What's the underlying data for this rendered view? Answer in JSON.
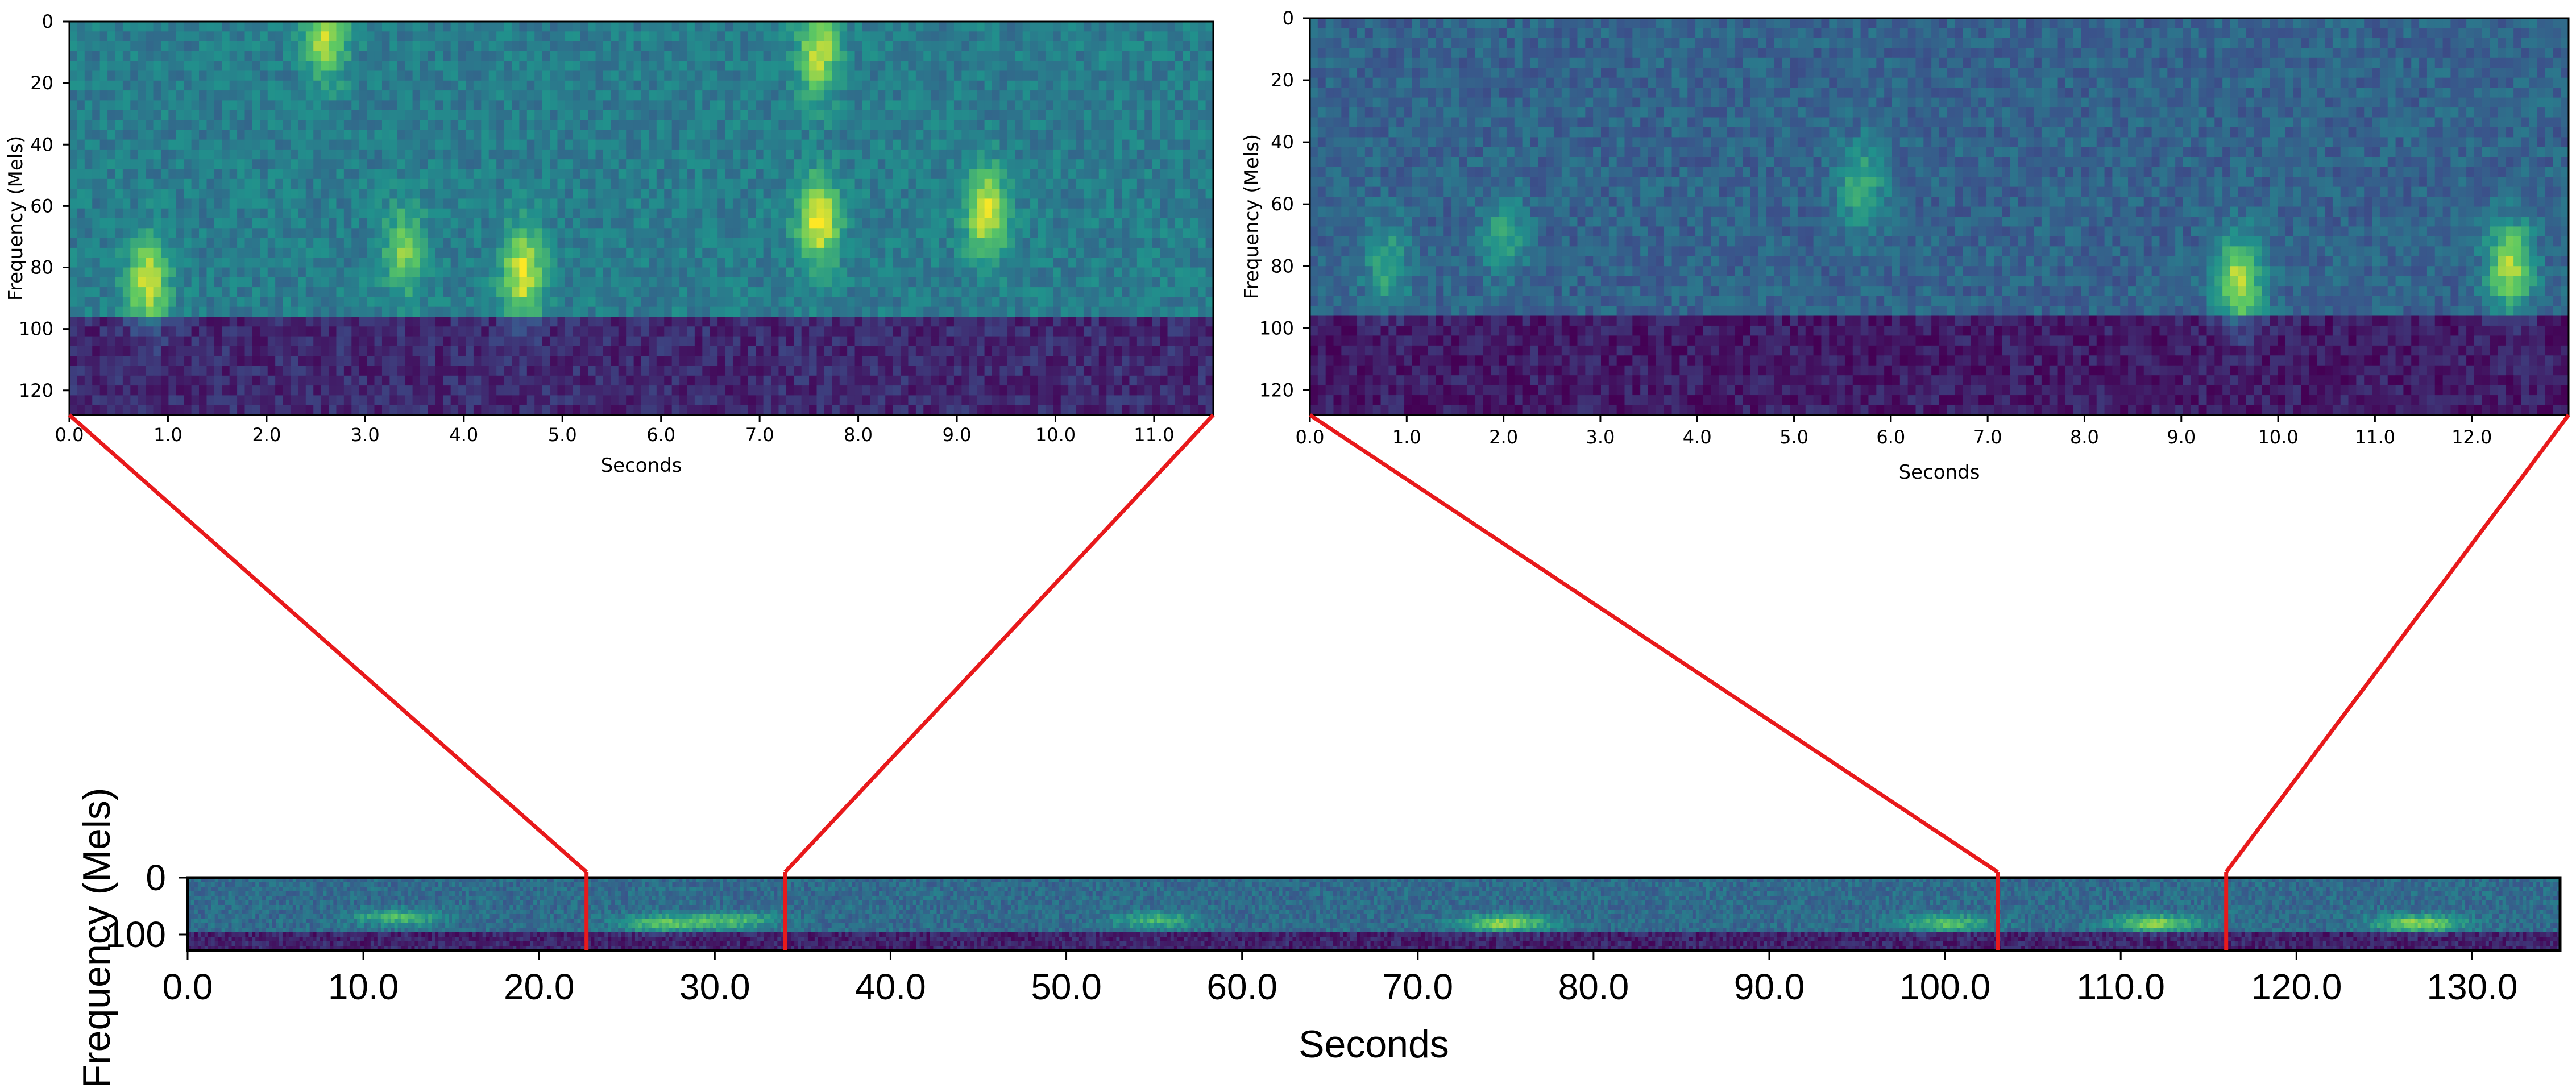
{
  "chart_data": [
    {
      "type": "heatmap",
      "name": "zoom-left",
      "colormap": [
        "#440154",
        "#3b528b",
        "#21918c",
        "#5ec962",
        "#fde725"
      ],
      "xlabel": "Seconds",
      "ylabel": "Frequency (Mels)",
      "xlim": [
        0.0,
        11.6
      ],
      "ylim": [
        128,
        0
      ],
      "x_ticks": [
        "0.0",
        "1.0",
        "2.0",
        "3.0",
        "4.0",
        "5.0",
        "6.0",
        "7.0",
        "8.0",
        "9.0",
        "10.0",
        "11.0"
      ],
      "y_ticks": [
        "0",
        "20",
        "40",
        "60",
        "80",
        "100",
        "120"
      ],
      "background_level": 0.42,
      "low_band": {
        "from_mel": 95,
        "level": 0.12
      },
      "events": [
        {
          "t": 0.8,
          "mel": 85,
          "intensity": 0.85
        },
        {
          "t": 3.4,
          "mel": 75,
          "intensity": 0.6
        },
        {
          "t": 4.6,
          "mel": 82,
          "intensity": 0.9
        },
        {
          "t": 7.6,
          "mel": 65,
          "intensity": 0.95
        },
        {
          "t": 9.3,
          "mel": 62,
          "intensity": 0.9
        },
        {
          "t": 2.6,
          "mel": 5,
          "intensity": 0.8
        },
        {
          "t": 7.6,
          "mel": 10,
          "intensity": 0.8
        }
      ]
    },
    {
      "type": "heatmap",
      "name": "zoom-right",
      "colormap": [
        "#440154",
        "#3b528b",
        "#21918c",
        "#5ec962",
        "#fde725"
      ],
      "xlabel": "Seconds",
      "ylabel": "Frequency (Mels)",
      "xlim": [
        0.0,
        13.0
      ],
      "ylim": [
        128,
        0
      ],
      "x_ticks": [
        "0.0",
        "1.0",
        "2.0",
        "3.0",
        "4.0",
        "5.0",
        "6.0",
        "7.0",
        "8.0",
        "9.0",
        "10.0",
        "11.0",
        "12.0"
      ],
      "y_ticks": [
        "0",
        "20",
        "40",
        "60",
        "80",
        "100",
        "120"
      ],
      "background_level": 0.32,
      "low_band": {
        "from_mel": 95,
        "level": 0.08
      },
      "events": [
        {
          "t": 0.8,
          "mel": 80,
          "intensity": 0.45
        },
        {
          "t": 5.7,
          "mel": 55,
          "intensity": 0.55
        },
        {
          "t": 9.6,
          "mel": 85,
          "intensity": 0.95
        },
        {
          "t": 12.4,
          "mel": 80,
          "intensity": 0.95
        },
        {
          "t": 2.0,
          "mel": 70,
          "intensity": 0.4
        }
      ]
    },
    {
      "type": "heatmap",
      "name": "overview",
      "colormap": [
        "#440154",
        "#3b528b",
        "#21918c",
        "#5ec962",
        "#fde725"
      ],
      "xlabel": "Seconds",
      "ylabel": "Frequency (Mels)",
      "xlim": [
        0.0,
        135.0
      ],
      "ylim": [
        128,
        0
      ],
      "x_ticks": [
        "0.0",
        "10.0",
        "20.0",
        "30.0",
        "40.0",
        "50.0",
        "60.0",
        "70.0",
        "80.0",
        "90.0",
        "100.0",
        "110.0",
        "120.0",
        "130.0"
      ],
      "y_ticks": [
        "0",
        "100"
      ],
      "background_level": 0.35,
      "low_band": {
        "from_mel": 95,
        "level": 0.1
      },
      "events": [
        {
          "t": 12.0,
          "mel": 70,
          "intensity": 0.55
        },
        {
          "t": 27.0,
          "mel": 80,
          "intensity": 0.6
        },
        {
          "t": 31.0,
          "mel": 75,
          "intensity": 0.55
        },
        {
          "t": 55.0,
          "mel": 75,
          "intensity": 0.5
        },
        {
          "t": 75.0,
          "mel": 80,
          "intensity": 0.8
        },
        {
          "t": 100.0,
          "mel": 80,
          "intensity": 0.6
        },
        {
          "t": 112.0,
          "mel": 80,
          "intensity": 0.75
        },
        {
          "t": 127.0,
          "mel": 80,
          "intensity": 0.8
        }
      ]
    }
  ],
  "zoom_regions": [
    {
      "start": 22.7,
      "end": 34.0
    },
    {
      "start": 103.0,
      "end": 116.0
    }
  ],
  "connector_color": "#e8191b"
}
